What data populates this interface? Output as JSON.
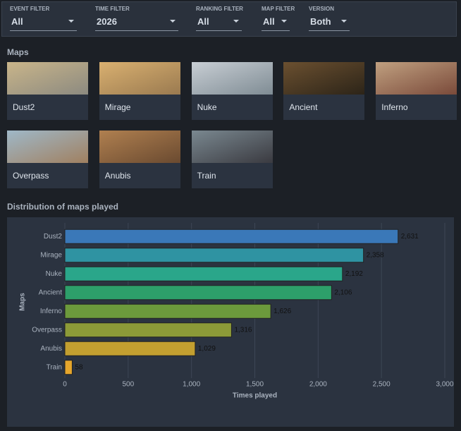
{
  "filters": [
    {
      "label": "EVENT FILTER",
      "value": "All"
    },
    {
      "label": "TIME FILTER",
      "value": "2026"
    },
    {
      "label": "RANKING FILTER",
      "value": "All"
    },
    {
      "label": "MAP FILTER",
      "value": "All"
    },
    {
      "label": "VERSION",
      "value": "Both"
    }
  ],
  "maps_heading": "Maps",
  "maps": [
    "Dust2",
    "Mirage",
    "Nuke",
    "Ancient",
    "Inferno",
    "Overpass",
    "Anubis",
    "Train"
  ],
  "chart_data": {
    "type": "bar",
    "orientation": "horizontal",
    "title": "Distribution of maps played",
    "x_label": "Times played",
    "y_label": "Maps",
    "categories": [
      "Dust2",
      "Mirage",
      "Nuke",
      "Ancient",
      "Inferno",
      "Overpass",
      "Anubis",
      "Train"
    ],
    "values": [
      2631,
      2358,
      2192,
      2106,
      1626,
      1316,
      1029,
      58
    ],
    "value_labels": [
      "2,631",
      "2,358",
      "2,192",
      "2,106",
      "1,626",
      "1,316",
      "1,029",
      "58"
    ],
    "colors": [
      "#3a78b8",
      "#2f93a2",
      "#2aa68a",
      "#2d9f6a",
      "#6c9a3c",
      "#8c9a38",
      "#c39f30",
      "#e6a62c"
    ],
    "xlim": [
      0,
      3000
    ],
    "xticks": [
      0,
      500,
      {
        "value": 1000,
        "label": "1,000"
      },
      {
        "value": 1500,
        "label": "1,500"
      },
      {
        "value": 2000,
        "label": "2,000"
      },
      {
        "value": 2500,
        "label": "2,500"
      },
      {
        "value": 3000,
        "label": "3,000"
      }
    ],
    "grid": true
  }
}
